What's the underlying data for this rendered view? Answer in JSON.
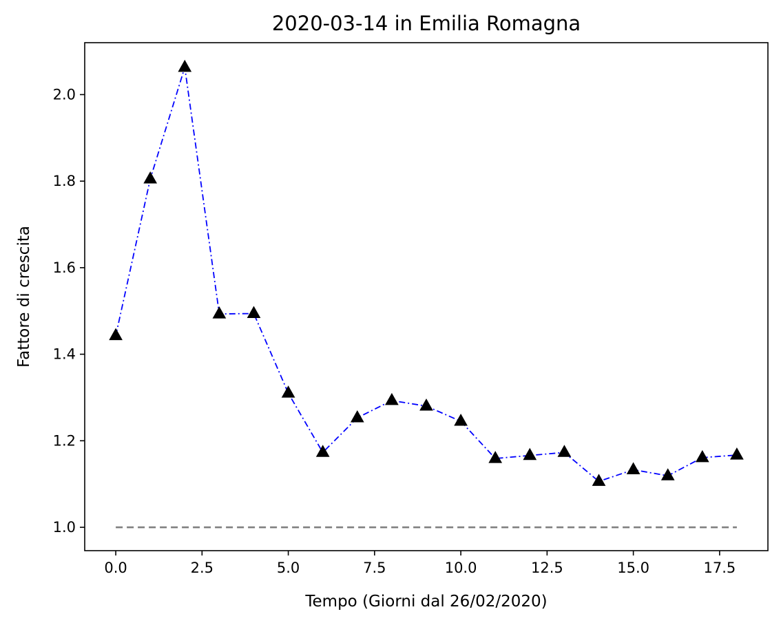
{
  "chart_data": {
    "type": "line",
    "title": "2020-03-14 in Emilia Romagna",
    "xlabel": "Tempo (Giorni dal 26/02/2020)",
    "ylabel": "Fattore di crescita",
    "xlim": [
      -0.9,
      18.9
    ],
    "ylim": [
      0.946,
      2.12
    ],
    "x_ticks": [
      0,
      2.5,
      5,
      7.5,
      10,
      12.5,
      15,
      17.5
    ],
    "x_tick_labels": [
      "0.0",
      "2.5",
      "5.0",
      "7.5",
      "10.0",
      "12.5",
      "15.0",
      "17.5"
    ],
    "y_ticks": [
      1.0,
      1.2,
      1.4,
      1.6,
      1.8,
      2.0
    ],
    "y_tick_labels": [
      "1.0",
      "1.2",
      "1.4",
      "1.6",
      "1.8",
      "2.0"
    ],
    "grid": false,
    "series": [
      {
        "x": [
          0,
          1,
          2,
          3,
          4,
          5,
          6,
          7,
          8,
          9,
          10,
          11,
          12,
          13,
          14,
          15,
          16,
          17,
          18
        ],
        "values": [
          1.443,
          1.805,
          2.063,
          1.493,
          1.494,
          1.31,
          1.173,
          1.253,
          1.293,
          1.28,
          1.245,
          1.159,
          1.166,
          1.173,
          1.106,
          1.133,
          1.119,
          1.161,
          1.167
        ],
        "line_style": "dash-dot",
        "line_color": "#0000ff",
        "marker": "triangle-up",
        "marker_color": "#000000"
      },
      {
        "x": [
          0,
          18
        ],
        "values": [
          1.0,
          1.0
        ],
        "line_style": "dashed",
        "line_color": "#808080",
        "marker": "none"
      }
    ]
  }
}
